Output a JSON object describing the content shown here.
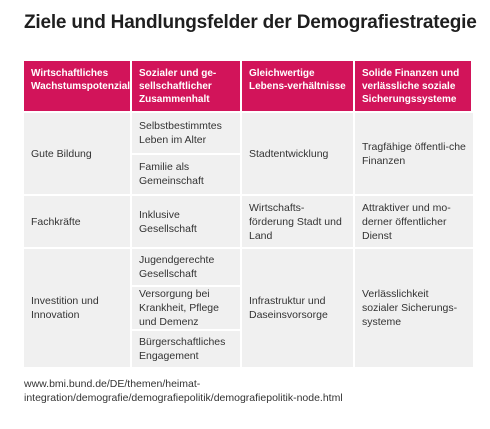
{
  "title": "Ziele und Handlungsfelder der Demografiestrategie",
  "headers": [
    "Wirtschaftliches Wachstumspotenzial",
    "Sozialer und ge-sellschaftlicher Zusammenhalt",
    "Gleichwertige Lebens-verhältnisse",
    "Solide Finanzen und verlässliche soziale Sicherungssysteme"
  ],
  "rows": [
    {
      "col1": "Gute Bildung",
      "col2": [
        "Selbstbestimmtes Leben im Alter",
        "Familie als Gemeinschaft"
      ],
      "col3": "Stadtentwicklung",
      "col4": "Tragfähige öffentli-che Finanzen"
    },
    {
      "col1": "Fachkräfte",
      "col2": [
        "Inklusive Gesellschaft"
      ],
      "col3": "Wirtschafts-förderung Stadt und Land",
      "col4": "Attraktiver und mo-derner öffentlicher Dienst"
    },
    {
      "col1": "Investition und Innovation",
      "col2": [
        "Jugendgerechte Gesellschaft",
        "Versorgung bei Krankheit, Pflege und Demenz",
        "Bürgerschaftliches Engagement"
      ],
      "col3": "Infrastruktur und Daseinsvorsorge",
      "col4": "Verlässlichkeit sozialer Sicherungs-systeme"
    }
  ],
  "source": "www.bmi.bund.de/DE/themen/heimat-integration/demografie/demografiepolitik/demografiepolitik-node.html"
}
